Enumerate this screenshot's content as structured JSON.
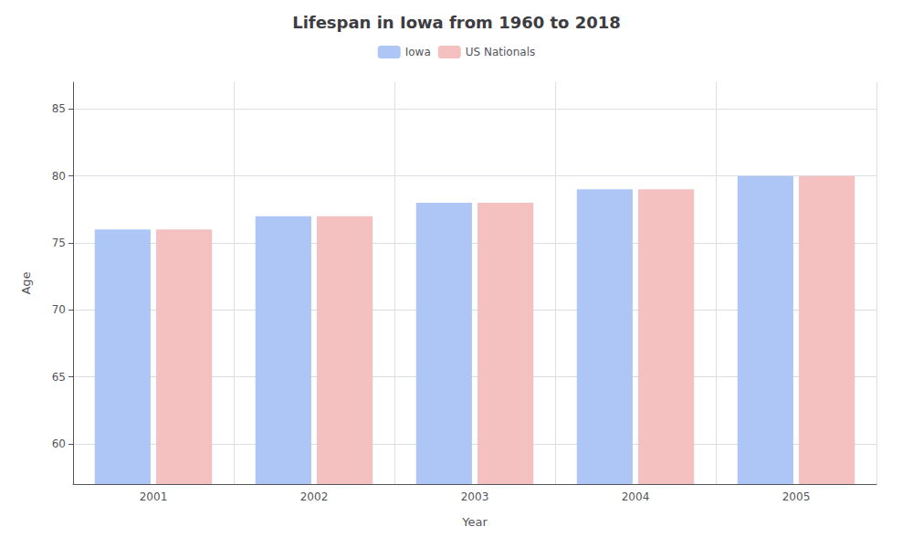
{
  "chart_data": {
    "type": "bar",
    "title": "Lifespan in Iowa from 1960 to 2018",
    "xlabel": "Year",
    "ylabel": "Age",
    "categories": [
      "2001",
      "2002",
      "2003",
      "2004",
      "2005"
    ],
    "series": [
      {
        "name": "Iowa",
        "color": "#aec6f5",
        "values": [
          76,
          77,
          78,
          79,
          80
        ]
      },
      {
        "name": "US Nationals",
        "color": "#f5c0c0",
        "values": [
          76,
          77,
          78,
          79,
          80
        ]
      }
    ],
    "ylim": [
      57,
      87
    ],
    "yticks": [
      60,
      65,
      70,
      75,
      80,
      85
    ],
    "grid": true,
    "legend": "top"
  }
}
